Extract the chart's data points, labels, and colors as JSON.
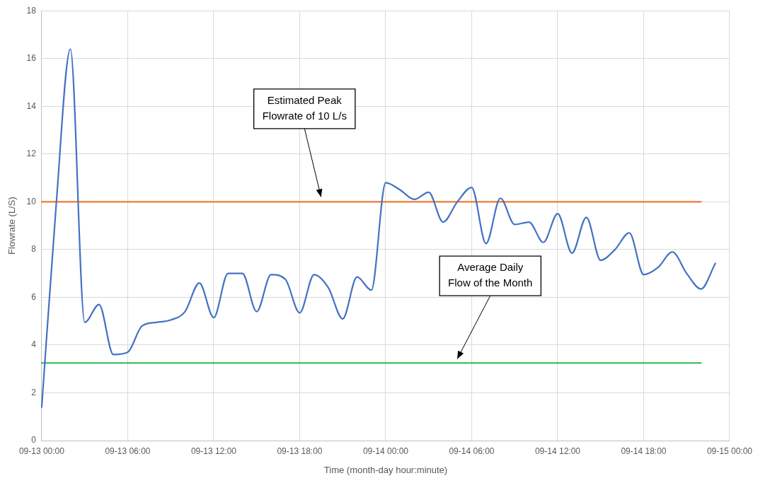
{
  "chart_data": {
    "type": "line",
    "xlabel": "Time (month-day hour:minute)",
    "ylabel": "Flowrate (L/S)",
    "categories": [
      "09-13 00:00",
      null,
      null,
      null,
      null,
      null,
      "09-13 06:00",
      null,
      null,
      null,
      null,
      null,
      "09-13 12:00",
      null,
      null,
      null,
      null,
      null,
      "09-13 18:00",
      null,
      null,
      null,
      null,
      null,
      "09-14 00:00",
      null,
      null,
      null,
      null,
      null,
      "09-14 06:00",
      null,
      null,
      null,
      null,
      null,
      "09-14 12:00",
      null,
      null,
      null,
      null,
      null,
      "09-14 18:00",
      null,
      null,
      null,
      null,
      null,
      "09-15 00:00"
    ],
    "ylim": [
      0,
      18
    ],
    "yticks": [
      0,
      2,
      4,
      6,
      8,
      10,
      12,
      14,
      16,
      18
    ],
    "grid": true,
    "marker": "none",
    "series": [
      {
        "type": "line",
        "color": "#4472c4",
        "values": [
          1.4,
          9.8,
          16.4,
          4.95,
          5.7,
          3.6,
          3.7,
          4.8,
          4.95,
          5.05,
          5.4,
          6.6,
          5.15,
          7.0,
          7.0,
          5.4,
          6.95,
          6.75,
          5.35,
          6.95,
          6.4,
          5.1,
          6.85,
          6.3,
          10.8,
          10.5,
          10.1,
          10.4,
          9.15,
          10.0,
          10.6,
          8.25,
          10.15,
          9.05,
          9.15,
          8.3,
          9.5,
          7.85,
          9.35,
          7.55,
          8.0,
          8.7,
          6.95,
          7.25,
          7.9,
          7.0,
          6.35,
          7.42,
          null
        ]
      },
      {
        "type": "line",
        "color": "#ed7d31",
        "values": [
          10,
          10,
          10,
          10,
          10,
          10,
          10,
          10,
          10,
          10,
          10,
          10,
          10,
          10,
          10,
          10,
          10,
          10,
          10,
          10,
          10,
          10,
          10,
          10,
          10,
          10,
          10,
          10,
          10,
          10,
          10,
          10,
          10,
          10,
          10,
          10,
          10,
          10,
          10,
          10,
          10,
          10,
          10,
          10,
          10,
          10,
          10,
          null,
          null
        ]
      },
      {
        "type": "line",
        "color": "#2eb552",
        "values": [
          3.25,
          3.25,
          3.25,
          3.25,
          3.25,
          3.25,
          3.25,
          3.25,
          3.25,
          3.25,
          3.25,
          3.25,
          3.25,
          3.25,
          3.25,
          3.25,
          3.25,
          3.25,
          3.25,
          3.25,
          3.25,
          3.25,
          3.25,
          3.25,
          3.25,
          3.25,
          3.25,
          3.25,
          3.25,
          3.25,
          3.25,
          3.25,
          3.25,
          3.25,
          3.25,
          3.25,
          3.25,
          3.25,
          3.25,
          3.25,
          3.25,
          3.25,
          3.25,
          3.25,
          3.25,
          3.25,
          3.25,
          null,
          null
        ]
      }
    ],
    "annotations": [
      "Estimated Peak Flowrate of 10 L/s",
      "Average Daily Flow of the Month"
    ]
  }
}
